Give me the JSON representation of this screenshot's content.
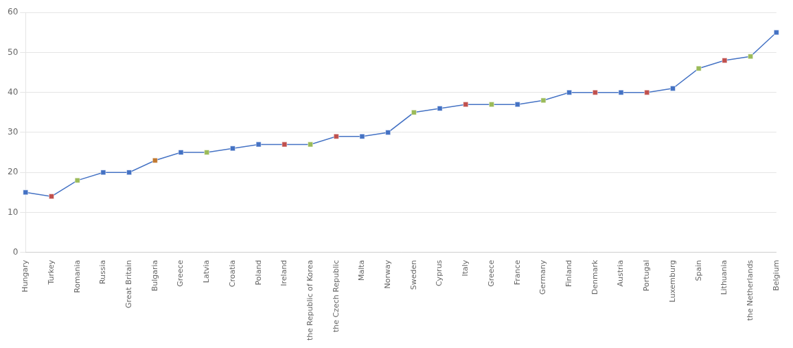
{
  "chart_data": {
    "type": "line",
    "categories": [
      "Hungary",
      "Turkey",
      "Romania",
      "Russia",
      "Great Britain",
      "Bulgaria",
      "Greece",
      "Latvia",
      "Croatia",
      "Poland",
      "Ireland",
      "the Republic of Korea",
      "the Czech Republic",
      "Malta",
      "Norway",
      "Sweden",
      "Cyprus",
      "Italy",
      "Greece",
      "France",
      "Germany",
      "Finland",
      "Denmark",
      "Austria",
      "Portugal",
      "Luxemburg",
      "Spain",
      "Lithuania",
      "the Netherlands",
      "Belgium"
    ],
    "values": [
      15,
      14,
      18,
      20,
      20,
      23,
      25,
      25,
      26,
      27,
      27,
      27,
      29,
      29,
      30,
      35,
      36,
      37,
      37,
      37,
      38,
      40,
      40,
      40,
      40,
      41,
      46,
      48,
      49,
      55
    ],
    "color": "#4472C4",
    "colors": [
      "#4472C4",
      "#C0504D",
      "#9BBB59",
      "#4472C4",
      "#4472C4",
      "#C07830",
      "#4472C4",
      "#9BBB59",
      "#4472C4",
      "#4472C4",
      "#C0504D",
      "#9BBB59",
      "#C0504D",
      "#4472C4",
      "#4472C4",
      "#9BBB59",
      "#4472C4",
      "#C0504D",
      "#9BBB59",
      "#4472C4",
      "#9BBB59",
      "#4472C4",
      "#C0504D",
      "#4472C4",
      "#C0504D",
      "#4472C4",
      "#9BBB59",
      "#C0504D",
      "#9BBB59",
      "#4472C4"
    ],
    "marker": "square",
    "ylim": [
      0,
      60
    ],
    "yticks": [
      0,
      10,
      20,
      30,
      40,
      50,
      60
    ],
    "grid": true
  }
}
